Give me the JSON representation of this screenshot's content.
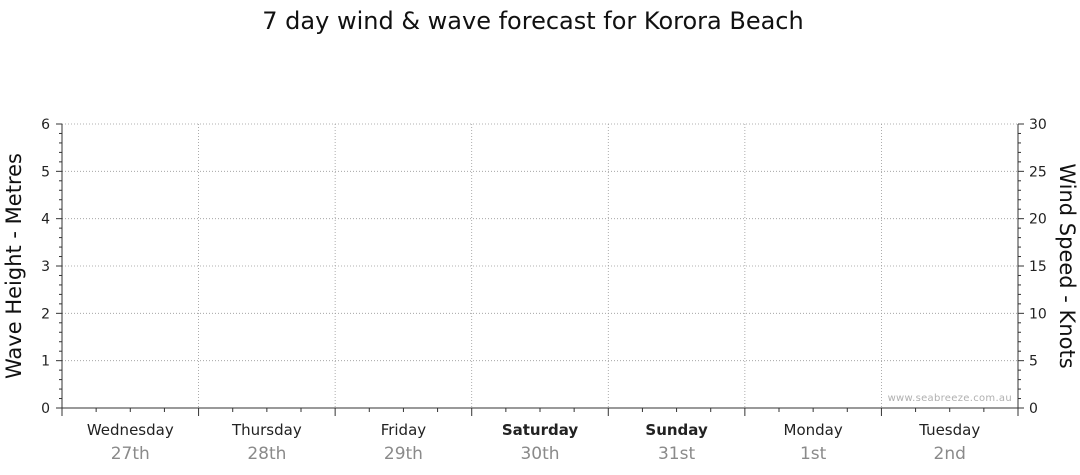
{
  "chart_data": {
    "type": "line",
    "title": "7 day wind & wave forecast for Korora Beach",
    "left_axis": {
      "label": "Wave Height - Metres",
      "range": [
        0,
        6
      ],
      "ticks": [
        "0",
        "1",
        "2",
        "3",
        "4",
        "5",
        "6"
      ]
    },
    "right_axis": {
      "label": "Wind Speed - Knots",
      "range": [
        0,
        30
      ],
      "ticks": [
        "0",
        "5",
        "10",
        "15",
        "20",
        "25",
        "30"
      ]
    },
    "days": [
      {
        "name": "Wednesday",
        "date": "27th",
        "bold": false
      },
      {
        "name": "Thursday",
        "date": "28th",
        "bold": false
      },
      {
        "name": "Friday",
        "date": "29th",
        "bold": false
      },
      {
        "name": "Saturday",
        "date": "30th",
        "bold": true
      },
      {
        "name": "Sunday",
        "date": "31st",
        "bold": true
      },
      {
        "name": "Monday",
        "date": "1st",
        "bold": false
      },
      {
        "name": "Tuesday",
        "date": "2nd",
        "bold": false
      }
    ],
    "series": [],
    "grid": true
  },
  "watermark": "www.seabreeze.com.au",
  "colors": {
    "axis": "#333333",
    "grid": "#999999",
    "date_text": "#8a8a8a"
  }
}
